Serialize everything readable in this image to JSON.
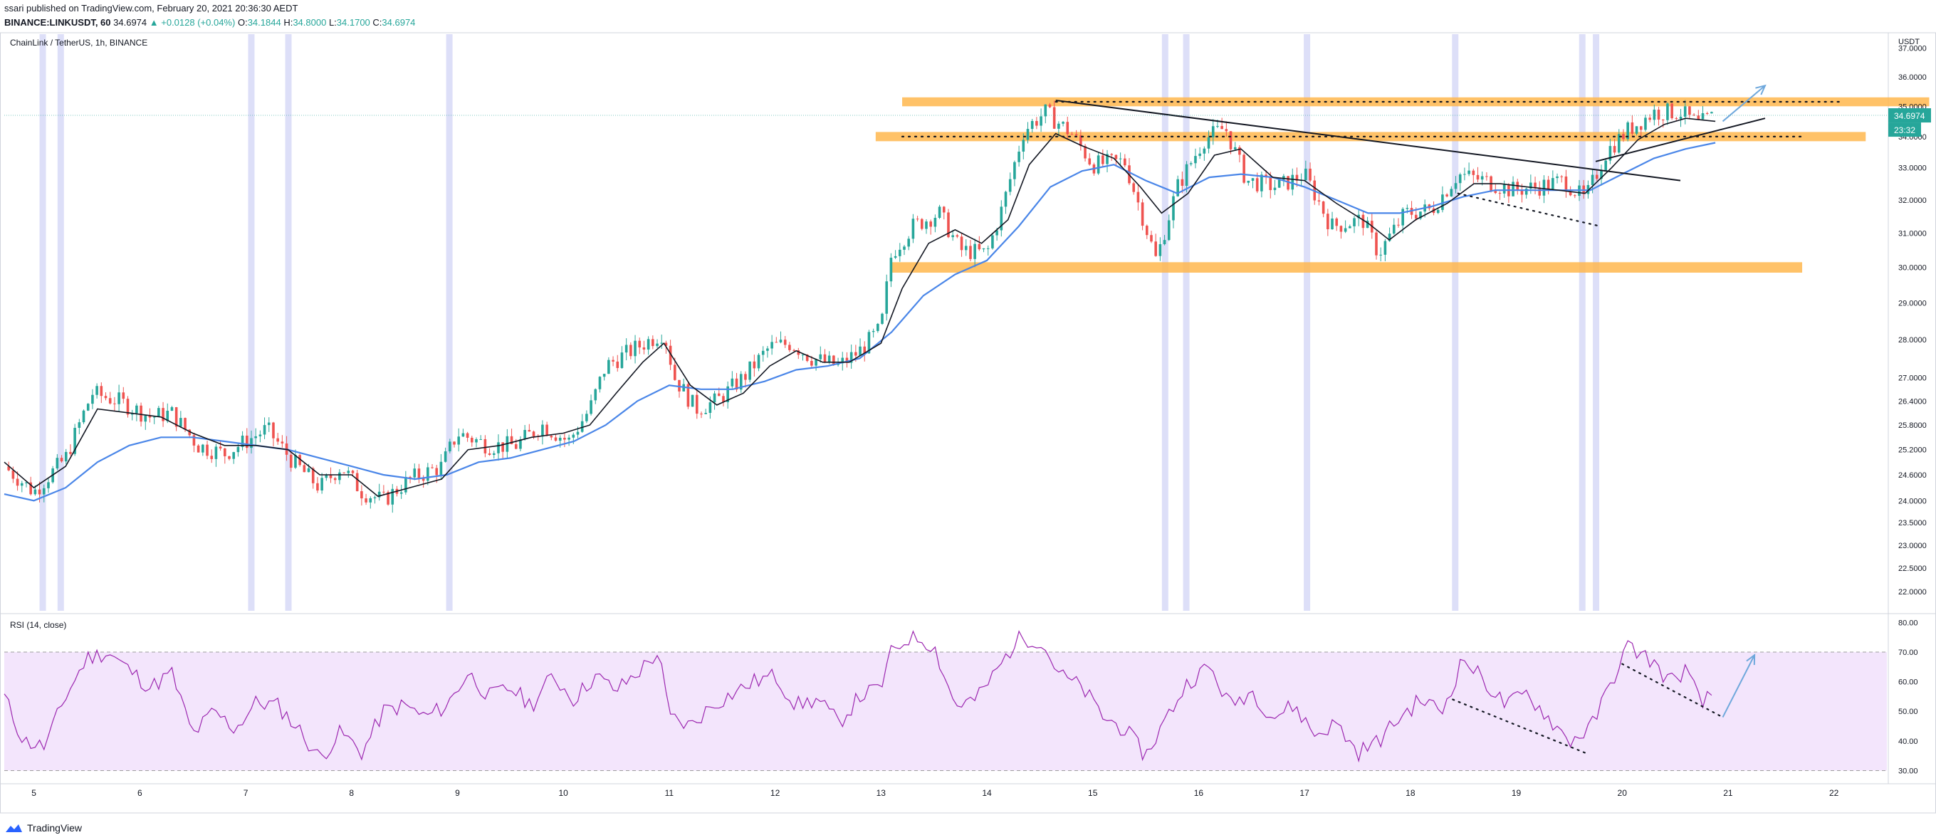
{
  "header": {
    "publish_line": "ssari published on TradingView.com, February 20, 2021 20:36:30 AEDT",
    "symbol": "BINANCE:LINKUSDT, 60",
    "last": "34.6974",
    "change": "▲ +0.0128 (+0.04%)",
    "open_label": "O:",
    "open": "34.1844",
    "high_label": "H:",
    "high": "34.8000",
    "low_label": "L:",
    "low": "34.1700",
    "close_label": "C:",
    "close": "34.6974"
  },
  "footer": {
    "brand": "TradingView"
  },
  "colors": {
    "up": "#26a69a",
    "down": "#ef5350",
    "ma_fast": "#131722",
    "ma_slow": "#4a86e8",
    "zone": "#ffb74d",
    "session": "#d1d4f5",
    "rsi_line": "#9c27b0",
    "rsi_band": "#f3e5fc",
    "arrow": "#6fa8dc",
    "price_tag": "#26a69a"
  },
  "chart_data": [
    {
      "type": "candlestick",
      "title": "ChainLink / TetherUS, 1h, BINANCE",
      "currency": "USDT",
      "x_tick_labels": [
        "5",
        "6",
        "7",
        "8",
        "9",
        "10",
        "11",
        "12",
        "13",
        "14",
        "15",
        "16",
        "17",
        "18",
        "19",
        "20",
        "21",
        "22"
      ],
      "x_ticks": [
        5,
        6,
        7,
        8,
        9,
        10,
        11,
        12,
        13,
        14,
        15,
        16,
        17,
        18,
        19,
        20,
        21,
        22
      ],
      "xlim": [
        4.72,
        22.5
      ],
      "y_ticks": [
        22.0,
        22.5,
        23.0,
        23.5,
        24.0,
        24.6,
        25.2,
        25.8,
        26.4,
        27.0,
        28.0,
        29.0,
        30.0,
        31.0,
        32.0,
        33.0,
        34.0,
        35.0,
        36.0,
        37.0
      ],
      "y_tick_labels": [
        "22.0000",
        "22.5000",
        "23.0000",
        "23.5000",
        "24.0000",
        "24.6000",
        "25.2000",
        "25.8000",
        "26.4000",
        "27.0000",
        "28.0000",
        "29.0000",
        "30.0000",
        "31.0000",
        "32.0000",
        "33.0000",
        "34.0000",
        "35.0000",
        "36.0000",
        "37.0000"
      ],
      "log_scale": true,
      "close_path": [
        [
          4.72,
          24.8
        ],
        [
          5.0,
          24.2
        ],
        [
          5.3,
          25.0
        ],
        [
          5.55,
          26.6
        ],
        [
          5.8,
          26.4
        ],
        [
          6.1,
          26.0
        ],
        [
          6.3,
          26.1
        ],
        [
          6.55,
          25.3
        ],
        [
          6.8,
          25.1
        ],
        [
          7.0,
          25.4
        ],
        [
          7.2,
          25.7
        ],
        [
          7.45,
          24.9
        ],
        [
          7.7,
          24.3
        ],
        [
          7.9,
          24.8
        ],
        [
          8.1,
          24.2
        ],
        [
          8.3,
          24.0
        ],
        [
          8.55,
          24.5
        ],
        [
          8.85,
          24.8
        ],
        [
          9.0,
          25.6
        ],
        [
          9.3,
          25.3
        ],
        [
          9.55,
          25.3
        ],
        [
          9.8,
          25.8
        ],
        [
          10.05,
          25.4
        ],
        [
          10.25,
          26.2
        ],
        [
          10.4,
          27.3
        ],
        [
          10.7,
          27.8
        ],
        [
          10.95,
          28.2
        ],
        [
          11.05,
          27.0
        ],
        [
          11.25,
          26.2
        ],
        [
          11.45,
          26.4
        ],
        [
          11.7,
          27.0
        ],
        [
          11.95,
          27.8
        ],
        [
          12.15,
          27.9
        ],
        [
          12.35,
          27.5
        ],
        [
          12.6,
          27.3
        ],
        [
          12.8,
          27.7
        ],
        [
          13.0,
          28.3
        ],
        [
          13.1,
          30.4
        ],
        [
          13.3,
          31.2
        ],
        [
          13.55,
          31.6
        ],
        [
          13.75,
          30.5
        ],
        [
          14.0,
          30.4
        ],
        [
          14.15,
          31.8
        ],
        [
          14.35,
          34.2
        ],
        [
          14.55,
          34.8
        ],
        [
          14.8,
          34.1
        ],
        [
          15.0,
          33.1
        ],
        [
          15.3,
          33.2
        ],
        [
          15.5,
          31.2
        ],
        [
          15.6,
          30.2
        ],
        [
          15.8,
          32.4
        ],
        [
          16.05,
          33.9
        ],
        [
          16.25,
          34.3
        ],
        [
          16.45,
          32.6
        ],
        [
          16.75,
          32.4
        ],
        [
          17.0,
          32.8
        ],
        [
          17.25,
          31.2
        ],
        [
          17.55,
          31.4
        ],
        [
          17.7,
          30.4
        ],
        [
          17.95,
          31.6
        ],
        [
          18.2,
          31.7
        ],
        [
          18.45,
          32.8
        ],
        [
          18.7,
          32.6
        ],
        [
          18.95,
          32.3
        ],
        [
          19.2,
          32.4
        ],
        [
          19.45,
          32.6
        ],
        [
          19.65,
          32.0
        ],
        [
          19.85,
          33.5
        ],
        [
          20.05,
          34.2
        ],
        [
          20.3,
          34.8
        ],
        [
          20.55,
          34.8
        ],
        [
          20.72,
          34.4
        ],
        [
          20.88,
          34.7
        ]
      ],
      "ma_fast": [
        [
          4.72,
          24.9
        ],
        [
          5.0,
          24.3
        ],
        [
          5.3,
          24.8
        ],
        [
          5.6,
          26.2
        ],
        [
          5.9,
          26.1
        ],
        [
          6.2,
          26.0
        ],
        [
          6.5,
          25.6
        ],
        [
          6.8,
          25.3
        ],
        [
          7.1,
          25.3
        ],
        [
          7.4,
          25.2
        ],
        [
          7.7,
          24.6
        ],
        [
          8.0,
          24.6
        ],
        [
          8.25,
          24.1
        ],
        [
          8.55,
          24.3
        ],
        [
          8.85,
          24.5
        ],
        [
          9.1,
          25.2
        ],
        [
          9.4,
          25.3
        ],
        [
          9.7,
          25.5
        ],
        [
          10.0,
          25.6
        ],
        [
          10.25,
          25.8
        ],
        [
          10.5,
          26.6
        ],
        [
          10.75,
          27.4
        ],
        [
          10.95,
          27.9
        ],
        [
          11.2,
          26.8
        ],
        [
          11.45,
          26.3
        ],
        [
          11.7,
          26.6
        ],
        [
          11.95,
          27.3
        ],
        [
          12.2,
          27.7
        ],
        [
          12.45,
          27.4
        ],
        [
          12.7,
          27.4
        ],
        [
          13.0,
          27.9
        ],
        [
          13.2,
          29.4
        ],
        [
          13.45,
          30.7
        ],
        [
          13.7,
          31.1
        ],
        [
          13.95,
          30.7
        ],
        [
          14.2,
          31.4
        ],
        [
          14.4,
          33.1
        ],
        [
          14.65,
          34.1
        ],
        [
          14.9,
          33.7
        ],
        [
          15.2,
          33.3
        ],
        [
          15.45,
          32.4
        ],
        [
          15.65,
          31.6
        ],
        [
          15.9,
          32.2
        ],
        [
          16.15,
          33.4
        ],
        [
          16.4,
          33.6
        ],
        [
          16.7,
          32.7
        ],
        [
          17.0,
          32.6
        ],
        [
          17.3,
          31.9
        ],
        [
          17.6,
          31.3
        ],
        [
          17.8,
          30.8
        ],
        [
          18.05,
          31.4
        ],
        [
          18.35,
          31.9
        ],
        [
          18.6,
          32.5
        ],
        [
          18.85,
          32.5
        ],
        [
          19.1,
          32.4
        ],
        [
          19.4,
          32.3
        ],
        [
          19.65,
          32.2
        ],
        [
          19.9,
          33.0
        ],
        [
          20.15,
          33.9
        ],
        [
          20.4,
          34.4
        ],
        [
          20.6,
          34.6
        ],
        [
          20.88,
          34.5
        ]
      ],
      "ma_slow": [
        [
          4.72,
          24.15
        ],
        [
          5.0,
          24.0
        ],
        [
          5.3,
          24.3
        ],
        [
          5.6,
          24.9
        ],
        [
          5.9,
          25.3
        ],
        [
          6.2,
          25.5
        ],
        [
          6.5,
          25.5
        ],
        [
          6.8,
          25.4
        ],
        [
          7.1,
          25.3
        ],
        [
          7.4,
          25.2
        ],
        [
          7.7,
          25.0
        ],
        [
          8.0,
          24.8
        ],
        [
          8.3,
          24.6
        ],
        [
          8.6,
          24.5
        ],
        [
          8.9,
          24.6
        ],
        [
          9.2,
          24.9
        ],
        [
          9.5,
          25.0
        ],
        [
          9.8,
          25.2
        ],
        [
          10.1,
          25.4
        ],
        [
          10.4,
          25.8
        ],
        [
          10.7,
          26.4
        ],
        [
          11.0,
          26.8
        ],
        [
          11.3,
          26.7
        ],
        [
          11.6,
          26.7
        ],
        [
          11.9,
          26.9
        ],
        [
          12.2,
          27.2
        ],
        [
          12.5,
          27.3
        ],
        [
          12.8,
          27.5
        ],
        [
          13.1,
          28.2
        ],
        [
          13.4,
          29.2
        ],
        [
          13.7,
          29.8
        ],
        [
          14.0,
          30.2
        ],
        [
          14.3,
          31.2
        ],
        [
          14.6,
          32.4
        ],
        [
          14.9,
          32.9
        ],
        [
          15.2,
          33.1
        ],
        [
          15.5,
          32.6
        ],
        [
          15.8,
          32.2
        ],
        [
          16.1,
          32.7
        ],
        [
          16.4,
          32.8
        ],
        [
          16.7,
          32.7
        ],
        [
          17.0,
          32.4
        ],
        [
          17.3,
          32.0
        ],
        [
          17.6,
          31.6
        ],
        [
          17.9,
          31.6
        ],
        [
          18.2,
          31.8
        ],
        [
          18.5,
          32.1
        ],
        [
          18.8,
          32.3
        ],
        [
          19.1,
          32.3
        ],
        [
          19.4,
          32.3
        ],
        [
          19.7,
          32.3
        ],
        [
          20.0,
          32.8
        ],
        [
          20.3,
          33.3
        ],
        [
          20.6,
          33.6
        ],
        [
          20.88,
          33.8
        ]
      ],
      "zones": [
        [
          13.1,
          21.7,
          29.85,
          30.15
        ],
        [
          12.95,
          22.3,
          33.85,
          34.15
        ],
        [
          13.2,
          22.9,
          35.0,
          35.3
        ]
      ],
      "trendlines": [
        {
          "x1": 14.65,
          "y1": 35.2,
          "x2": 20.55,
          "y2": 32.6,
          "style": "solid"
        },
        {
          "x1": 19.75,
          "y1": 33.2,
          "x2": 21.35,
          "y2": 34.6,
          "style": "solid"
        },
        {
          "x1": 18.45,
          "y1": 32.2,
          "x2": 19.8,
          "y2": 31.2,
          "style": "dotted"
        },
        {
          "x1": 13.2,
          "y1": 34.0,
          "x2": 21.7,
          "y2": 34.0,
          "style": "dotted"
        },
        {
          "x1": 14.65,
          "y1": 35.15,
          "x2": 22.05,
          "y2": 35.15,
          "style": "dotted"
        }
      ],
      "arrow": {
        "x1": 20.95,
        "y1": 34.5,
        "x2": 21.35,
        "y2": 35.7
      },
      "price_tag": {
        "value": 34.6974,
        "label": "34.6974",
        "countdown": "23:32"
      },
      "session_bands": [
        5.08,
        5.25,
        7.05,
        7.4,
        8.92,
        15.68,
        15.88,
        17.02,
        18.42,
        19.62,
        19.75
      ]
    },
    {
      "type": "line",
      "title": "RSI (14, close)",
      "y_ticks": [
        30,
        40,
        50,
        60,
        70,
        80
      ],
      "y_tick_labels": [
        "30.00",
        "40.00",
        "50.00",
        "60.00",
        "70.00",
        "80.00"
      ],
      "ylim": [
        27,
        82
      ],
      "band": [
        30,
        70
      ],
      "path": [
        [
          4.72,
          55
        ],
        [
          4.9,
          40
        ],
        [
          5.1,
          38
        ],
        [
          5.3,
          55
        ],
        [
          5.5,
          68
        ],
        [
          5.7,
          70
        ],
        [
          5.9,
          64
        ],
        [
          6.1,
          58
        ],
        [
          6.3,
          63
        ],
        [
          6.5,
          42
        ],
        [
          6.7,
          50
        ],
        [
          6.9,
          44
        ],
        [
          7.1,
          53
        ],
        [
          7.3,
          52
        ],
        [
          7.5,
          44
        ],
        [
          7.7,
          34
        ],
        [
          7.9,
          43
        ],
        [
          8.1,
          36
        ],
        [
          8.3,
          50
        ],
        [
          8.5,
          52
        ],
        [
          8.7,
          48
        ],
        [
          8.9,
          52
        ],
        [
          9.1,
          63
        ],
        [
          9.3,
          55
        ],
        [
          9.5,
          58
        ],
        [
          9.7,
          52
        ],
        [
          9.9,
          62
        ],
        [
          10.1,
          54
        ],
        [
          10.3,
          62
        ],
        [
          10.5,
          57
        ],
        [
          10.7,
          63
        ],
        [
          10.9,
          70
        ],
        [
          11.0,
          48
        ],
        [
          11.2,
          45
        ],
        [
          11.4,
          52
        ],
        [
          11.6,
          56
        ],
        [
          11.8,
          60
        ],
        [
          12.0,
          62
        ],
        [
          12.2,
          52
        ],
        [
          12.4,
          54
        ],
        [
          12.6,
          46
        ],
        [
          12.8,
          55
        ],
        [
          13.0,
          58
        ],
        [
          13.1,
          70
        ],
        [
          13.3,
          76
        ],
        [
          13.5,
          72
        ],
        [
          13.7,
          52
        ],
        [
          13.9,
          54
        ],
        [
          14.1,
          64
        ],
        [
          14.3,
          75
        ],
        [
          14.5,
          74
        ],
        [
          14.7,
          62
        ],
        [
          14.9,
          58
        ],
        [
          15.1,
          48
        ],
        [
          15.3,
          44
        ],
        [
          15.5,
          35
        ],
        [
          15.7,
          48
        ],
        [
          15.9,
          60
        ],
        [
          16.1,
          65
        ],
        [
          16.3,
          52
        ],
        [
          16.5,
          57
        ],
        [
          16.7,
          48
        ],
        [
          16.9,
          52
        ],
        [
          17.1,
          42
        ],
        [
          17.3,
          46
        ],
        [
          17.5,
          36
        ],
        [
          17.7,
          40
        ],
        [
          17.9,
          48
        ],
        [
          18.1,
          54
        ],
        [
          18.3,
          50
        ],
        [
          18.5,
          68
        ],
        [
          18.7,
          60
        ],
        [
          18.9,
          52
        ],
        [
          19.1,
          56
        ],
        [
          19.3,
          48
        ],
        [
          19.5,
          40
        ],
        [
          19.7,
          44
        ],
        [
          19.9,
          60
        ],
        [
          20.05,
          72
        ],
        [
          20.25,
          68
        ],
        [
          20.45,
          60
        ],
        [
          20.6,
          64
        ],
        [
          20.75,
          52
        ],
        [
          20.88,
          57
        ]
      ],
      "trendlines": [
        {
          "x1": 18.4,
          "y1": 54,
          "x2": 19.65,
          "y2": 36,
          "style": "dotted"
        },
        {
          "x1": 20.0,
          "y1": 66,
          "x2": 20.95,
          "y2": 48,
          "style": "dotted"
        }
      ],
      "arrow": {
        "x1": 20.95,
        "y1": 48,
        "x2": 21.25,
        "y2": 69
      }
    }
  ]
}
